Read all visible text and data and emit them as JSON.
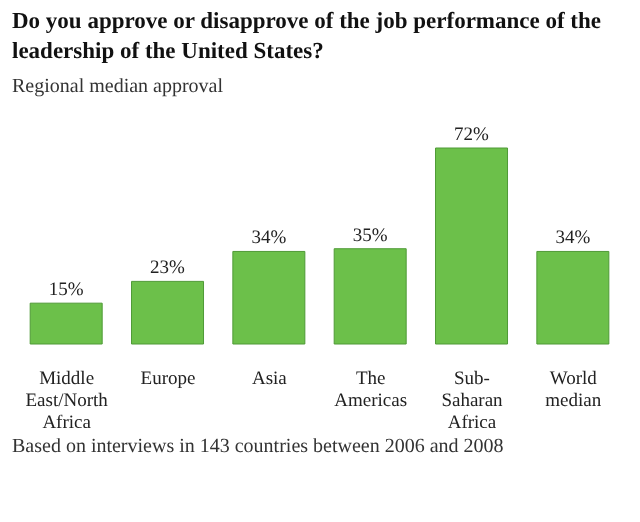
{
  "chart_data": {
    "type": "bar",
    "title": "Do you approve or disapprove of the job performance of the leadership of the United States?",
    "subtitle": "Regional median approval",
    "categories": [
      "Middle East/North Africa",
      "Europe",
      "Asia",
      "The Americas",
      "Sub-Saharan Africa",
      "World median"
    ],
    "values": [
      15,
      23,
      34,
      35,
      72,
      34
    ],
    "value_labels": [
      "15%",
      "23%",
      "34%",
      "35%",
      "72%",
      "34%"
    ],
    "color": "#6cc04a",
    "annotations": [
      "Based on interviews in 143 countries between 2006 and 2008"
    ]
  }
}
